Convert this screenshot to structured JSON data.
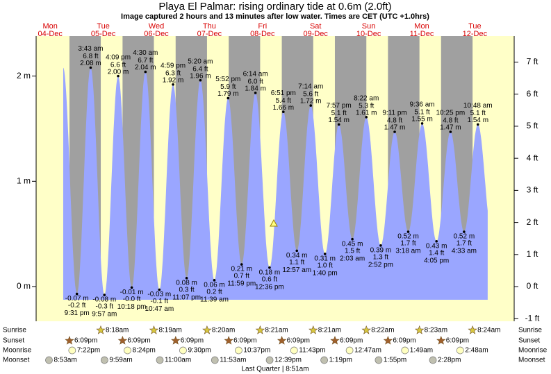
{
  "chart_data": {
    "type": "area",
    "title": "Playa El Palmar: rising  ordinary tide at 0.6m (2.0ft)",
    "subtitle": "Image captured 2 hours and 13 minutes after low water. Times are CET (UTC +1.0hrs)",
    "footer": "Last Quarter | 8:51am",
    "ylim": [
      -0.33,
      2.38
    ],
    "yticks": [
      {
        "value": 0,
        "label": "0 m"
      },
      {
        "value": 1,
        "label": "1 m"
      },
      {
        "value": 2,
        "label": "2 m"
      }
    ],
    "y2lim": [
      -1.08,
      7.81
    ],
    "y2ticks": [
      {
        "value": -1,
        "label": "-1 ft"
      },
      {
        "value": 0,
        "label": "0 ft"
      },
      {
        "value": 1,
        "label": "1 ft"
      },
      {
        "value": 2,
        "label": "2 ft"
      },
      {
        "value": 3,
        "label": "3 ft"
      },
      {
        "value": 4,
        "label": "4 ft"
      },
      {
        "value": 5,
        "label": "5 ft"
      },
      {
        "value": 6,
        "label": "6 ft"
      },
      {
        "value": 7,
        "label": "7 ft"
      }
    ],
    "colors": {
      "day": "#ffffc8",
      "night": "#a0a0a0",
      "water": "#9aa6ff",
      "weekday": "#d80000"
    },
    "tides": {
      "times": [
        "9:31 pm",
        "3:43 am",
        "9:57 am",
        "4:09 pm",
        "10:18 pm",
        "4:30 am",
        "10:47 am",
        "4:59 pm",
        "11:07 pm",
        "5:20 am",
        "11:39 am",
        "5:52 pm",
        "11:59 pm",
        "6:14 am",
        "12:36 pm",
        "6:51 pm",
        "12:57 am",
        "7:14 am",
        "1:40 pm",
        "7:57 pm",
        "2:03 am",
        "8:22 am",
        "2:52 pm",
        "9:11 pm",
        "3:18 am",
        "9:36 am",
        "4:05 pm",
        "10:25 pm",
        "4:33 am",
        "10:48 am"
      ],
      "values": [
        -0.07,
        2.08,
        -0.08,
        2.0,
        -0.01,
        2.04,
        -0.03,
        1.92,
        0.08,
        1.96,
        0.06,
        1.79,
        0.21,
        1.84,
        0.18,
        1.66,
        0.34,
        1.72,
        0.31,
        1.54,
        0.45,
        1.61,
        0.39,
        1.47,
        0.52,
        1.55,
        0.43,
        1.47,
        0.52,
        1.54
      ],
      "value_labels": [
        "-0.07 m",
        "2.08 m",
        "-0.08 m",
        "2.00 m",
        "-0.01 m",
        "2.04 m",
        "-0.03 m",
        "1.92 m",
        "0.08 m",
        "1.96 m",
        "0.06 m",
        "1.79 m",
        "0.21 m",
        "1.84 m",
        "0.18 m",
        "1.66 m",
        "0.34 m",
        "1.72 m",
        "0.31 m",
        "1.54 m",
        "0.45 m",
        "1.61 m",
        "0.39 m",
        "1.47 m",
        "0.52 m",
        "1.55 m",
        "0.43 m",
        "1.47 m",
        "0.52 m",
        "1.54 m"
      ],
      "ft_labels": [
        "-0.2 ft",
        "6.8 ft",
        "-0.3 ft",
        "6.6 ft",
        "-0.0 ft",
        "6.7 ft",
        "-0.1 ft",
        "6.3 ft",
        "0.3 ft",
        "6.4 ft",
        "0.2 ft",
        "5.9 ft",
        "0.7 ft",
        "6.0 ft",
        "0.6 ft",
        "5.4 ft",
        "1.1 ft",
        "5.6 ft",
        "1.0 ft",
        "5.1 ft",
        "1.5 ft",
        "5.3 ft",
        "1.3 ft",
        "4.8 ft",
        "1.7 ft",
        "5.1 ft",
        "1.4 ft",
        "4.8 ft",
        "1.7 ft",
        "5.1 ft"
      ]
    },
    "rows": [
      "Sunrise",
      "Sunset",
      "Moonrise",
      "Moonset"
    ],
    "days": [
      {
        "weekday": "Mon",
        "date": "04-Dec",
        "sunrise": null,
        "sunset": "6:09pm",
        "moonrise": "7:22pm",
        "moonset": "8:53am"
      },
      {
        "weekday": "Tue",
        "date": "05-Dec",
        "sunrise": "8:18am",
        "sunset": "6:09pm",
        "moonrise": "8:24pm",
        "moonset": "9:59am"
      },
      {
        "weekday": "Wed",
        "date": "06-Dec",
        "sunrise": "8:19am",
        "sunset": "6:09pm",
        "moonrise": "9:30pm",
        "moonset": "11:00am"
      },
      {
        "weekday": "Thu",
        "date": "07-Dec",
        "sunrise": "8:20am",
        "sunset": "6:09pm",
        "moonrise": "10:37pm",
        "moonset": "11:53am"
      },
      {
        "weekday": "Fri",
        "date": "08-Dec",
        "sunrise": "8:21am",
        "sunset": "6:09pm",
        "moonrise": "11:43pm",
        "moonset": "12:39pm"
      },
      {
        "weekday": "Sat",
        "date": "09-Dec",
        "sunrise": "8:21am",
        "sunset": "6:09pm",
        "moonrise": null,
        "moonset": "1:19pm"
      },
      {
        "weekday": "Sun",
        "date": "10-Dec",
        "sunrise": "8:22am",
        "sunset": "6:09pm",
        "moonrise": "12:47am",
        "moonset": "1:55pm"
      },
      {
        "weekday": "Mon",
        "date": "11-Dec",
        "sunrise": "8:23am",
        "sunset": "6:09pm",
        "moonrise": "1:49am",
        "moonset": "2:28pm"
      },
      {
        "weekday": "Tue",
        "date": "12-Dec",
        "sunrise": "8:24am",
        "sunset": null,
        "moonrise": "2:48am",
        "moonset": null
      }
    ]
  }
}
